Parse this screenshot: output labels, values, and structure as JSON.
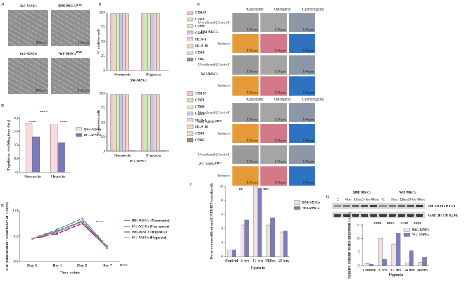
{
  "figure": {
    "panel_letters": [
      "A",
      "B",
      "C",
      "D",
      "E",
      "F",
      "G"
    ]
  },
  "panel_a": {
    "images": [
      {
        "title": "BM-MSCs"
      },
      {
        "title": "BM-MSCs",
        "sup": "HYP"
      },
      {
        "title": "WJ-MSCs"
      },
      {
        "title": "WJ-MSCs",
        "sup": "HYP"
      }
    ],
    "scale_bar": "100µm"
  },
  "panel_c": {
    "columns": [
      "Adipogenic",
      "Osteogenic",
      "Chondrogenic"
    ],
    "groups": [
      {
        "title": "BM-MSCs"
      },
      {
        "title": "WJ-MSCs"
      },
      {
        "title": "BM-MSCs",
        "sup": "HYP"
      },
      {
        "title": "WJ-MSCs",
        "sup": "HYP"
      }
    ],
    "rows": [
      "Uninduced (Control)",
      "Induced"
    ],
    "scale_bar": "100µm"
  },
  "panel_g_blot": {
    "groups": [
      "BM-MSCs",
      "WJ-MSCs"
    ],
    "lanes": [
      "C",
      "6hrs",
      "12hrs",
      "24hrs",
      "48hrs"
    ],
    "bands": [
      "Hif-1α (93 KDa)",
      "GAPDH (36 KDa)"
    ]
  },
  "chart_data": [
    {
      "type": "bar",
      "ylabel": "% positive cells",
      "xlabel": "BM-MSCs",
      "categories": [
        "Normoxia",
        "Hypoxia"
      ],
      "ylim": [
        0,
        100
      ],
      "yticks": [
        0,
        25,
        50,
        75,
        100
      ],
      "series": [
        {
          "name": "CD105",
          "color": "#f6c4c6",
          "values": [
            98,
            98
          ]
        },
        {
          "name": "CD73",
          "color": "#cbe8c2",
          "values": [
            98,
            98
          ]
        },
        {
          "name": "CD90",
          "color": "#e4eeb0",
          "values": [
            98,
            98
          ]
        },
        {
          "name": "CD29",
          "color": "#c5c8ee",
          "values": [
            98,
            98
          ]
        },
        {
          "name": "HLA-I",
          "color": "#efcfe4",
          "values": [
            98,
            98
          ]
        },
        {
          "name": "HLA-II",
          "color": "#f4dcbc",
          "values": [
            98,
            98
          ]
        },
        {
          "name": "CD34",
          "color": "#dcdcdc",
          "values": [
            0.5,
            0.5
          ]
        },
        {
          "name": "CD45",
          "color": "#a88a6a",
          "values": [
            0.5,
            0.5
          ]
        }
      ]
    },
    {
      "type": "bar",
      "ylabel": "% positive cells",
      "xlabel": "WJ-MSCs",
      "categories": [
        "Normoxia",
        "Hypoxia"
      ],
      "ylim": [
        0,
        100
      ],
      "yticks": [
        0,
        25,
        50,
        75,
        100
      ],
      "series": [
        {
          "name": "CD105",
          "color": "#f6c4c6",
          "values": [
            98,
            98
          ]
        },
        {
          "name": "CD73",
          "color": "#cbe8c2",
          "values": [
            98,
            98
          ]
        },
        {
          "name": "CD90",
          "color": "#e4eeb0",
          "values": [
            98,
            98
          ]
        },
        {
          "name": "CD29",
          "color": "#c5c8ee",
          "values": [
            98,
            98
          ]
        },
        {
          "name": "HLA-I",
          "color": "#efcfe4",
          "values": [
            98,
            98
          ]
        },
        {
          "name": "HLA-II",
          "color": "#f4dcbc",
          "values": [
            98,
            98
          ]
        },
        {
          "name": "CD34",
          "color": "#dcdcdc",
          "values": [
            0.5,
            0.5
          ]
        },
        {
          "name": "CD45",
          "color": "#a88a6a",
          "values": [
            0.5,
            0.5
          ]
        }
      ]
    },
    {
      "type": "bar",
      "ylabel": "Population doubling time (hrs)",
      "categories": [
        "Normoxia",
        "Hypoxia"
      ],
      "ylim": [
        0,
        40
      ],
      "yticks": [
        0,
        10,
        20,
        30,
        40
      ],
      "series": [
        {
          "name": "BM-MSCs",
          "color": "#f9dadd",
          "values": [
            36,
            35.5
          ]
        },
        {
          "name": "WJ-MSCs",
          "color": "#7a7ab8",
          "values": [
            26,
            22
          ]
        }
      ],
      "annotations": [
        "****",
        "****",
        "****"
      ]
    },
    {
      "type": "line",
      "ylabel": "Cell proliferation (Absorbance at 570nm)",
      "xlabel": "Time-points",
      "categories": [
        "Day 1",
        "Day 3",
        "Day 5",
        "Day 7"
      ],
      "ylim": [
        0,
        1
      ],
      "yticks": [
        {
          "value": 0,
          "label": "0.0"
        },
        0.5,
        {
          "value": 1,
          "label": "1.0"
        }
      ],
      "series": [
        {
          "name": "BM-MSCs (Normoxia)",
          "color": "#8b1a2b",
          "values": [
            0.45,
            0.55,
            0.75,
            0.27
          ]
        },
        {
          "name": "WJ-MSCs (Normoxia)",
          "color": "#6b4f9a",
          "values": [
            0.46,
            0.6,
            0.8,
            0.3
          ]
        },
        {
          "name": "BM-MSCs (Hypoxia)",
          "color": "#3aa070",
          "values": [
            0.45,
            0.63,
            0.85,
            0.3
          ]
        },
        {
          "name": "WJ-MSCs (Hypoxia)",
          "color": "#c384c3",
          "values": [
            0.46,
            0.58,
            0.78,
            0.28
          ]
        }
      ],
      "annotations": [
        "**",
        "****",
        "****"
      ]
    },
    {
      "type": "bar",
      "ylabel": "Relative quantification (GAPDH Normalized)",
      "xlabel": "Hypoxia",
      "categories": [
        "Control",
        "6 hrs",
        "12 hrs",
        "24 hrs",
        "48 hrs"
      ],
      "ylim": [
        0,
        10
      ],
      "yticks": [
        0,
        2,
        4,
        6,
        8,
        10
      ],
      "series": [
        {
          "name": "BM-MSCs",
          "color": "#f5e0e0",
          "values": [
            1,
            4.5,
            10,
            4.5,
            3.5
          ]
        },
        {
          "name": "WJ-MSCs",
          "color": "#7d7dbe",
          "values": [
            1,
            5.2,
            9.7,
            5.5,
            3.7
          ]
        }
      ],
      "annotations": [
        "**",
        "***"
      ]
    },
    {
      "type": "bar",
      "ylabel": "Relative amount of Hif-1α protein (A.U.)",
      "xlabel": "Hypoxia",
      "categories": [
        "Control",
        "6 hrs",
        "12 hrs",
        "24 hrs",
        "48 hrs"
      ],
      "ylim": [
        0,
        15
      ],
      "yticks": [
        0,
        5,
        10,
        15
      ],
      "series": [
        {
          "name": "BM-MSCs",
          "color": "#f5e0e0",
          "values": [
            1,
            10,
            8,
            1.5,
            1.2
          ]
        },
        {
          "name": "WJ-MSCs",
          "color": "#7d7dbe",
          "values": [
            0.7,
            2.5,
            12,
            5.5,
            3.2
          ]
        }
      ],
      "annotations": [
        "****",
        "****",
        "****",
        "****"
      ]
    }
  ]
}
